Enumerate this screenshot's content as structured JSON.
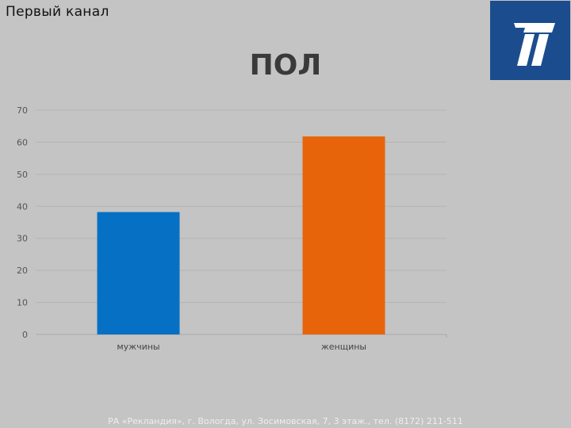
{
  "header": {
    "channel_name": "Первый канал",
    "title": "ПОЛ"
  },
  "logo": {
    "icon": "channel-one-logo",
    "color": "#1b4d8e"
  },
  "footer": {
    "text": "РА «Рекландия», г. Вологда, ул. Зосимовская, 7, 3 этаж., тел. (8172) 211-511"
  },
  "chart_data": {
    "type": "bar",
    "categories": [
      "мужчины",
      "женщины"
    ],
    "values": [
      38.2,
      61.8
    ],
    "colors": [
      "#0670c4",
      "#e8640a"
    ],
    "yticks": [
      0,
      10,
      20,
      30,
      40,
      50,
      60,
      70
    ],
    "ylim": [
      0,
      70
    ],
    "grid": true,
    "legend": "none"
  }
}
